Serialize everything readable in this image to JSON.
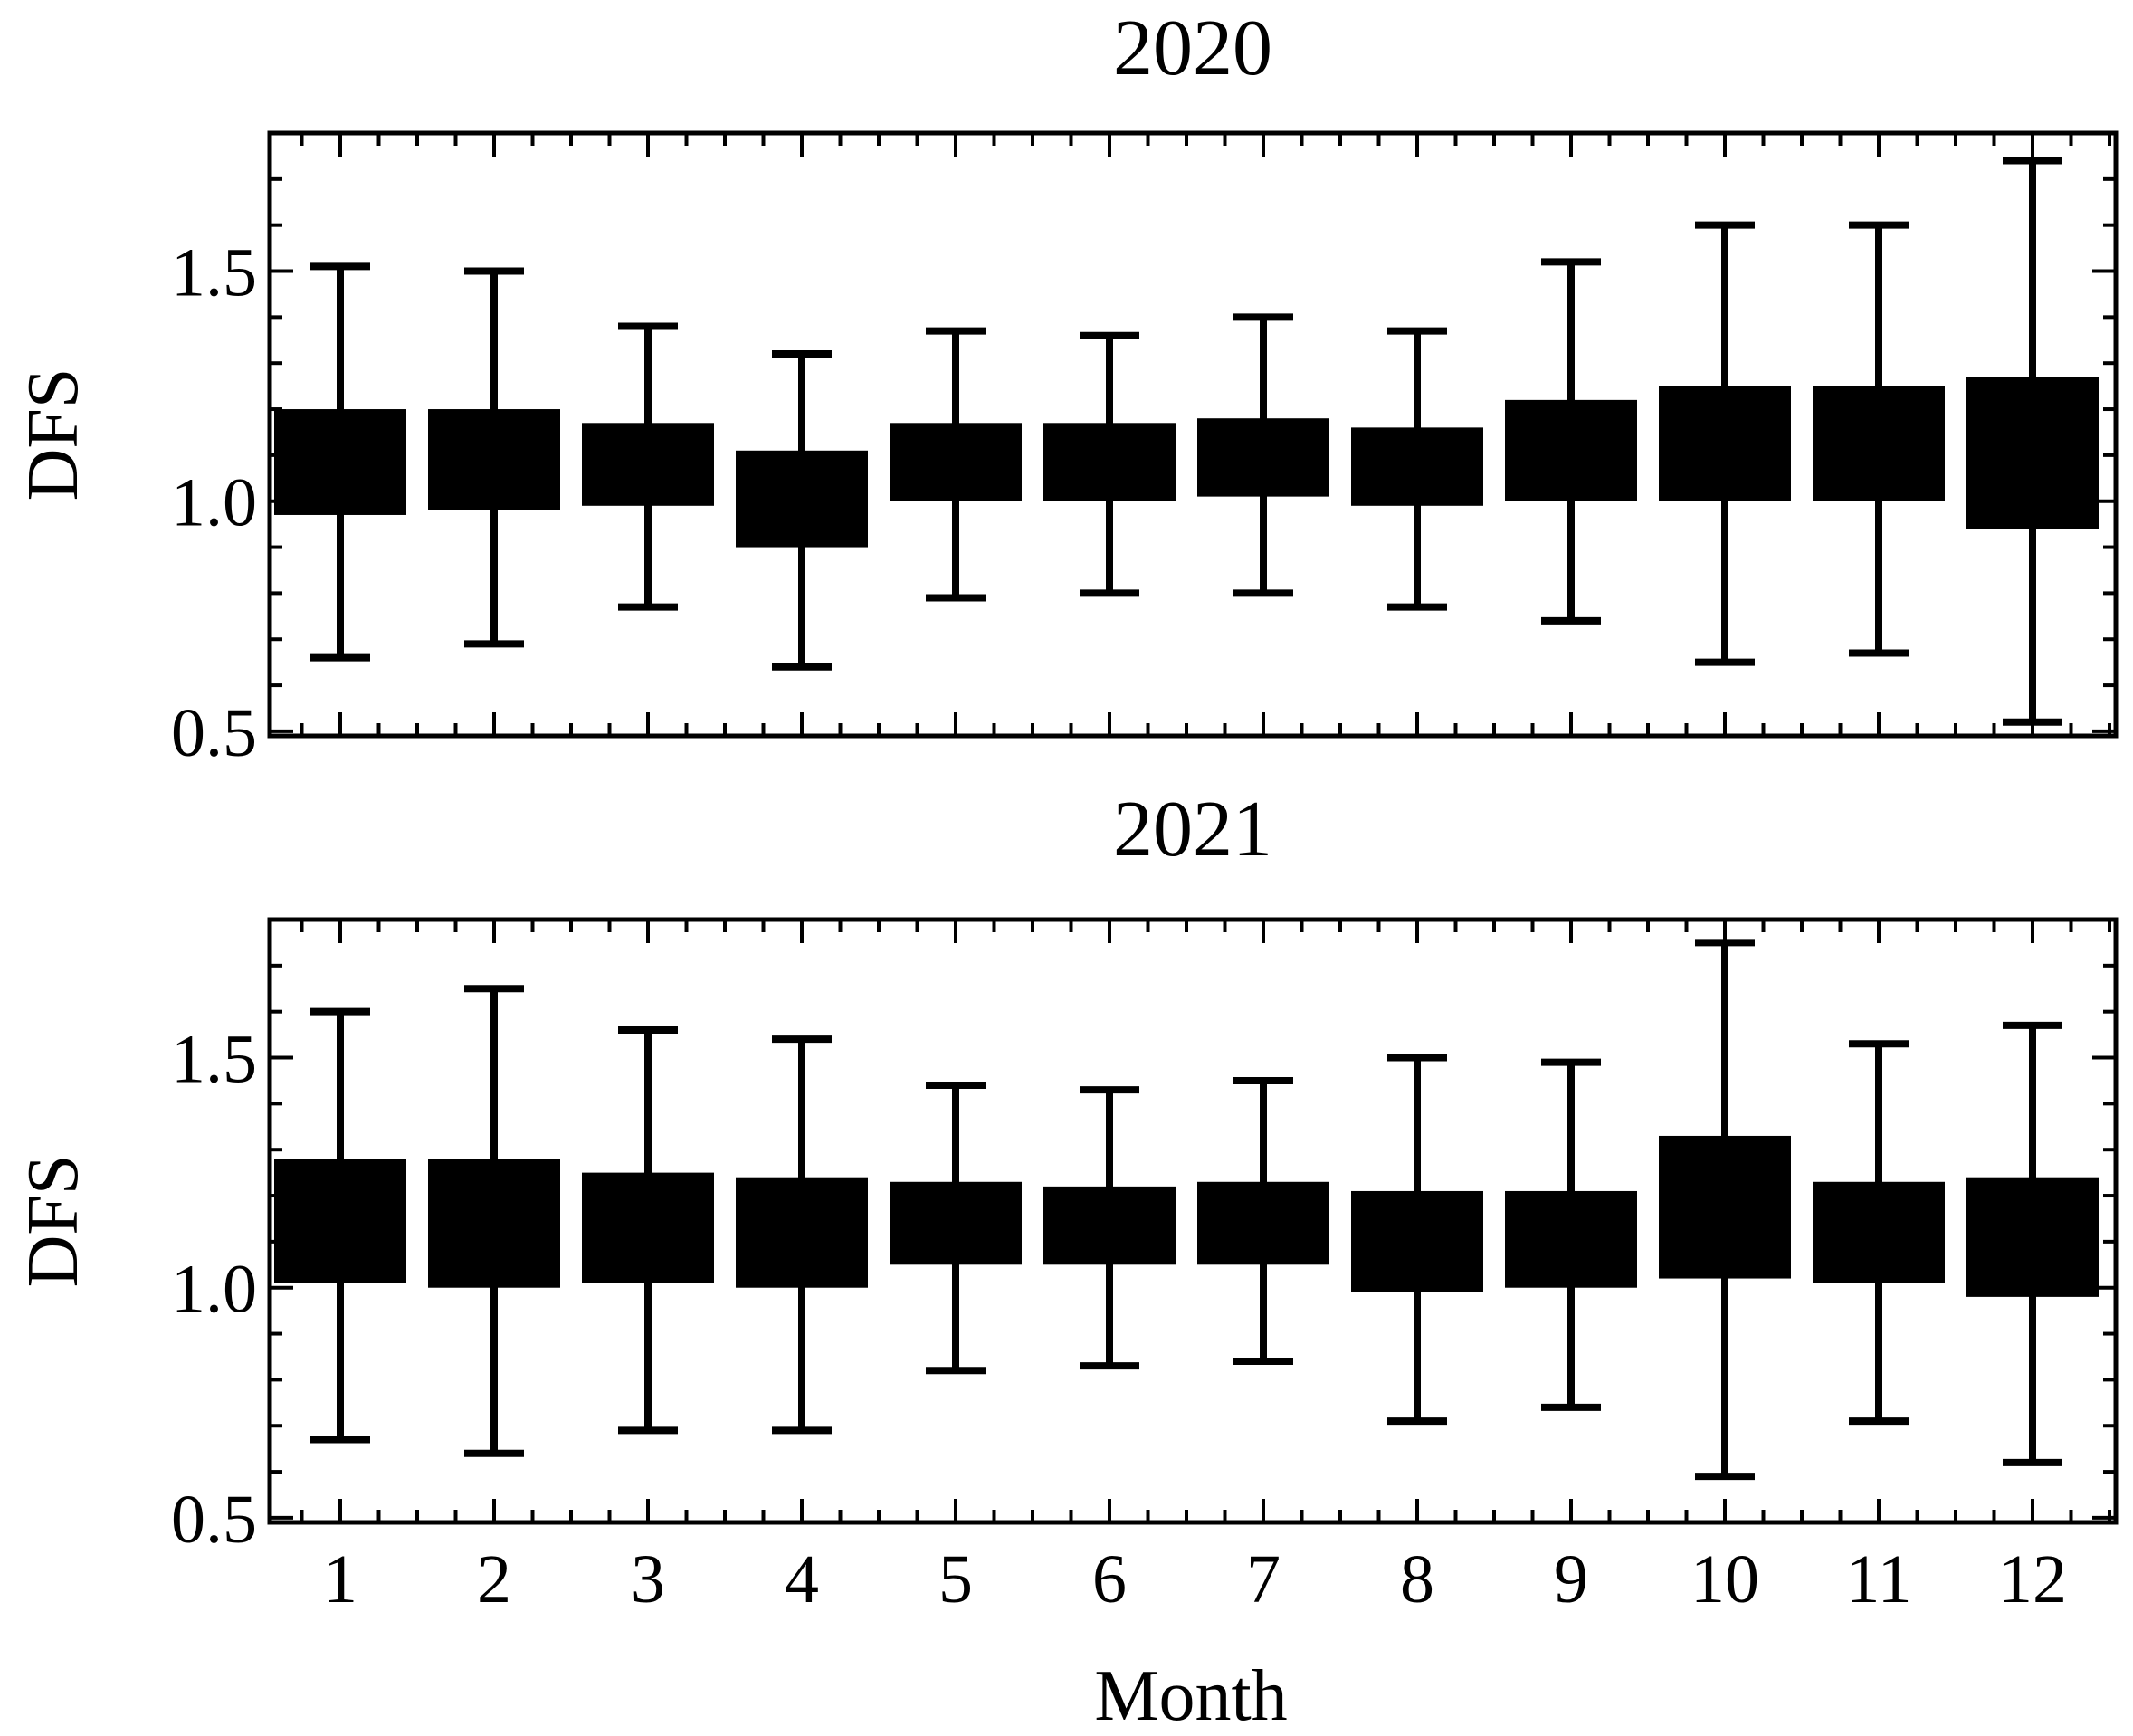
{
  "figure": {
    "xlabel": "Month",
    "colors": {
      "box": "#000000",
      "frame": "#000000",
      "background": "#ffffff"
    }
  },
  "chart_data": [
    {
      "type": "box",
      "title": "2020",
      "ylabel": "DFS",
      "xlabel": "",
      "ylim": [
        0.49,
        1.8
      ],
      "yticks": [
        "0.5",
        "1.0",
        "1.5"
      ],
      "categories": [
        "1",
        "2",
        "3",
        "4",
        "5",
        "6",
        "7",
        "8",
        "9",
        "10",
        "11",
        "12"
      ],
      "boxes": [
        {
          "q1": 0.97,
          "q3": 1.2,
          "whisker_low": 0.66,
          "whisker_high": 1.51
        },
        {
          "q1": 0.98,
          "q3": 1.2,
          "whisker_low": 0.69,
          "whisker_high": 1.5
        },
        {
          "q1": 0.99,
          "q3": 1.17,
          "whisker_low": 0.77,
          "whisker_high": 1.38
        },
        {
          "q1": 0.9,
          "q3": 1.11,
          "whisker_low": 0.64,
          "whisker_high": 1.32
        },
        {
          "q1": 1.0,
          "q3": 1.17,
          "whisker_low": 0.79,
          "whisker_high": 1.37
        },
        {
          "q1": 1.0,
          "q3": 1.17,
          "whisker_low": 0.8,
          "whisker_high": 1.36
        },
        {
          "q1": 1.01,
          "q3": 1.18,
          "whisker_low": 0.8,
          "whisker_high": 1.4
        },
        {
          "q1": 0.99,
          "q3": 1.16,
          "whisker_low": 0.77,
          "whisker_high": 1.37
        },
        {
          "q1": 1.0,
          "q3": 1.22,
          "whisker_low": 0.74,
          "whisker_high": 1.52
        },
        {
          "q1": 1.0,
          "q3": 1.25,
          "whisker_low": 0.65,
          "whisker_high": 1.6
        },
        {
          "q1": 1.0,
          "q3": 1.25,
          "whisker_low": 0.67,
          "whisker_high": 1.6
        },
        {
          "q1": 0.94,
          "q3": 1.27,
          "whisker_low": 0.52,
          "whisker_high": 1.74
        }
      ]
    },
    {
      "type": "box",
      "title": "2021",
      "ylabel": "DFS",
      "xlabel": "Month",
      "ylim": [
        0.49,
        1.8
      ],
      "yticks": [
        "0.5",
        "1.0",
        "1.5"
      ],
      "categories": [
        "1",
        "2",
        "3",
        "4",
        "5",
        "6",
        "7",
        "8",
        "9",
        "10",
        "11",
        "12"
      ],
      "boxes": [
        {
          "q1": 1.01,
          "q3": 1.28,
          "whisker_low": 0.67,
          "whisker_high": 1.6
        },
        {
          "q1": 1.0,
          "q3": 1.28,
          "whisker_low": 0.64,
          "whisker_high": 1.65
        },
        {
          "q1": 1.01,
          "q3": 1.25,
          "whisker_low": 0.69,
          "whisker_high": 1.56
        },
        {
          "q1": 1.0,
          "q3": 1.24,
          "whisker_low": 0.69,
          "whisker_high": 1.54
        },
        {
          "q1": 1.05,
          "q3": 1.23,
          "whisker_low": 0.82,
          "whisker_high": 1.44
        },
        {
          "q1": 1.05,
          "q3": 1.22,
          "whisker_low": 0.83,
          "whisker_high": 1.43
        },
        {
          "q1": 1.05,
          "q3": 1.23,
          "whisker_low": 0.84,
          "whisker_high": 1.45
        },
        {
          "q1": 0.99,
          "q3": 1.21,
          "whisker_low": 0.71,
          "whisker_high": 1.5
        },
        {
          "q1": 1.0,
          "q3": 1.21,
          "whisker_low": 0.74,
          "whisker_high": 1.49
        },
        {
          "q1": 1.02,
          "q3": 1.33,
          "whisker_low": 0.59,
          "whisker_high": 1.75
        },
        {
          "q1": 1.01,
          "q3": 1.23,
          "whisker_low": 0.71,
          "whisker_high": 1.53
        },
        {
          "q1": 0.98,
          "q3": 1.24,
          "whisker_low": 0.62,
          "whisker_high": 1.57
        }
      ]
    }
  ]
}
